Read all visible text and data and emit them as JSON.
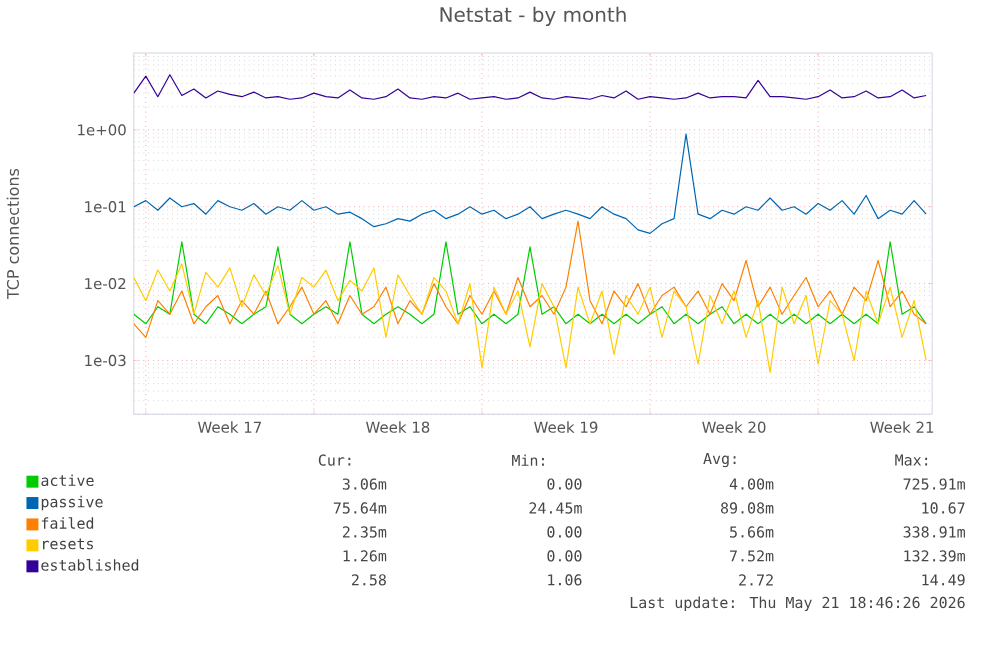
{
  "chart_data": {
    "type": "line",
    "title": "Netstat - by month",
    "ylabel": "TCP connections",
    "x": [
      "2026-04-19T12:00",
      "2026-04-20T00:00",
      "2026-04-20T12:00",
      "2026-04-21T00:00",
      "2026-04-21T12:00",
      "2026-04-22T00:00",
      "2026-04-22T12:00",
      "2026-04-23T00:00",
      "2026-04-23T12:00",
      "2026-04-24T00:00",
      "2026-04-24T12:00",
      "2026-04-25T00:00",
      "2026-04-25T12:00",
      "2026-04-26T00:00",
      "2026-04-26T12:00",
      "2026-04-27T00:00",
      "2026-04-27T12:00",
      "2026-04-28T00:00",
      "2026-04-28T12:00",
      "2026-04-29T00:00",
      "2026-04-29T12:00",
      "2026-04-30T00:00",
      "2026-04-30T12:00",
      "2026-05-01T00:00",
      "2026-05-01T12:00",
      "2026-05-02T00:00",
      "2026-05-02T12:00",
      "2026-05-03T00:00",
      "2026-05-03T12:00",
      "2026-05-04T00:00",
      "2026-05-04T12:00",
      "2026-05-05T00:00",
      "2026-05-05T12:00",
      "2026-05-06T00:00",
      "2026-05-06T12:00",
      "2026-05-07T00:00",
      "2026-05-07T12:00",
      "2026-05-08T00:00",
      "2026-05-08T12:00",
      "2026-05-09T00:00",
      "2026-05-09T12:00",
      "2026-05-10T00:00",
      "2026-05-10T12:00",
      "2026-05-11T00:00",
      "2026-05-11T12:00",
      "2026-05-12T00:00",
      "2026-05-12T12:00",
      "2026-05-13T00:00",
      "2026-05-13T12:00",
      "2026-05-14T00:00",
      "2026-05-14T12:00",
      "2026-05-15T00:00",
      "2026-05-15T12:00",
      "2026-05-16T00:00",
      "2026-05-16T12:00",
      "2026-05-17T00:00",
      "2026-05-17T12:00",
      "2026-05-18T00:00",
      "2026-05-18T12:00",
      "2026-05-19T00:00",
      "2026-05-19T12:00",
      "2026-05-20T00:00",
      "2026-05-20T12:00",
      "2026-05-21T00:00",
      "2026-05-21T12:00",
      "2026-05-22T00:00",
      "2026-05-22T12:00"
    ],
    "series": [
      {
        "name": "active",
        "color": "#00cc00",
        "values": [
          0.004,
          0.003,
          0.005,
          0.004,
          0.035,
          0.004,
          0.003,
          0.005,
          0.004,
          0.003,
          0.004,
          0.005,
          0.03,
          0.004,
          0.003,
          0.004,
          0.005,
          0.004,
          0.035,
          0.004,
          0.003,
          0.004,
          0.005,
          0.004,
          0.003,
          0.004,
          0.035,
          0.004,
          0.005,
          0.003,
          0.004,
          0.003,
          0.004,
          0.03,
          0.004,
          0.005,
          0.003,
          0.004,
          0.003,
          0.004,
          0.003,
          0.004,
          0.003,
          0.004,
          0.005,
          0.003,
          0.004,
          0.003,
          0.004,
          0.005,
          0.003,
          0.004,
          0.003,
          0.004,
          0.003,
          0.004,
          0.003,
          0.004,
          0.003,
          0.004,
          0.003,
          0.004,
          0.003,
          0.035,
          0.004,
          0.005,
          0.003
        ]
      },
      {
        "name": "passive",
        "color": "#0066b3",
        "values": [
          0.1,
          0.12,
          0.09,
          0.13,
          0.1,
          0.11,
          0.08,
          0.12,
          0.1,
          0.09,
          0.11,
          0.08,
          0.1,
          0.09,
          0.12,
          0.09,
          0.1,
          0.08,
          0.085,
          0.07,
          0.055,
          0.06,
          0.07,
          0.065,
          0.08,
          0.09,
          0.07,
          0.08,
          0.1,
          0.08,
          0.09,
          0.07,
          0.08,
          0.1,
          0.07,
          0.08,
          0.09,
          0.08,
          0.07,
          0.1,
          0.08,
          0.07,
          0.05,
          0.045,
          0.06,
          0.07,
          0.88,
          0.08,
          0.07,
          0.09,
          0.08,
          0.1,
          0.09,
          0.13,
          0.09,
          0.1,
          0.08,
          0.11,
          0.09,
          0.12,
          0.08,
          0.14,
          0.07,
          0.09,
          0.08,
          0.12,
          0.08
        ]
      },
      {
        "name": "failed",
        "color": "#ff8000",
        "values": [
          0.003,
          0.002,
          0.006,
          0.004,
          0.008,
          0.003,
          0.005,
          0.007,
          0.003,
          0.006,
          0.004,
          0.008,
          0.003,
          0.005,
          0.009,
          0.004,
          0.006,
          0.003,
          0.007,
          0.004,
          0.005,
          0.009,
          0.003,
          0.006,
          0.004,
          0.01,
          0.005,
          0.003,
          0.007,
          0.004,
          0.008,
          0.004,
          0.012,
          0.005,
          0.007,
          0.004,
          0.009,
          0.065,
          0.006,
          0.003,
          0.008,
          0.005,
          0.01,
          0.004,
          0.007,
          0.009,
          0.005,
          0.008,
          0.004,
          0.01,
          0.006,
          0.02,
          0.005,
          0.009,
          0.004,
          0.007,
          0.012,
          0.005,
          0.008,
          0.004,
          0.009,
          0.006,
          0.02,
          0.005,
          0.008,
          0.004,
          0.003
        ]
      },
      {
        "name": "resets",
        "color": "#ffcc00",
        "values": [
          0.012,
          0.006,
          0.015,
          0.008,
          0.018,
          0.004,
          0.014,
          0.009,
          0.016,
          0.005,
          0.013,
          0.007,
          0.017,
          0.004,
          0.012,
          0.009,
          0.015,
          0.006,
          0.011,
          0.008,
          0.016,
          0.002,
          0.013,
          0.007,
          0.004,
          0.012,
          0.008,
          0.003,
          0.01,
          0.0008,
          0.009,
          0.004,
          0.008,
          0.0015,
          0.01,
          0.005,
          0.0008,
          0.009,
          0.003,
          0.008,
          0.0012,
          0.007,
          0.004,
          0.009,
          0.002,
          0.008,
          0.005,
          0.0009,
          0.007,
          0.003,
          0.008,
          0.002,
          0.006,
          0.0007,
          0.009,
          0.003,
          0.007,
          0.0009,
          0.006,
          0.004,
          0.001,
          0.008,
          0.003,
          0.009,
          0.002,
          0.006,
          0.001
        ]
      },
      {
        "name": "established",
        "color": "#330099",
        "values": [
          3.0,
          5.0,
          2.7,
          5.2,
          2.8,
          3.4,
          2.6,
          3.2,
          2.9,
          2.7,
          3.1,
          2.6,
          2.7,
          2.5,
          2.6,
          3.0,
          2.7,
          2.6,
          3.3,
          2.6,
          2.5,
          2.7,
          3.4,
          2.6,
          2.5,
          2.7,
          2.6,
          3.0,
          2.5,
          2.6,
          2.7,
          2.5,
          2.6,
          3.1,
          2.6,
          2.5,
          2.7,
          2.6,
          2.5,
          2.8,
          2.6,
          3.2,
          2.5,
          2.7,
          2.6,
          2.5,
          2.6,
          3.0,
          2.6,
          2.7,
          2.7,
          2.6,
          4.4,
          2.7,
          2.7,
          2.6,
          2.5,
          2.7,
          3.3,
          2.6,
          2.7,
          3.2,
          2.6,
          2.7,
          3.3,
          2.6,
          2.8
        ]
      }
    ],
    "xlim": [
      "2026-04-19T12:00",
      "2026-05-22T18:00"
    ],
    "xticks": [
      {
        "value": "2026-04-20",
        "label": null
      },
      {
        "value": "2026-04-27",
        "label": null
      },
      {
        "value": "2026-05-04",
        "label": null
      },
      {
        "value": "2026-05-11",
        "label": null
      },
      {
        "value": "2026-05-18",
        "label": null
      },
      {
        "value": "2026-04-23T12:00",
        "label": "Week 17"
      },
      {
        "value": "2026-04-30T12:00",
        "label": "Week 18"
      },
      {
        "value": "2026-05-07T12:00",
        "label": "Week 19"
      },
      {
        "value": "2026-05-14T12:00",
        "label": "Week 20"
      },
      {
        "value": "2026-05-21T12:00",
        "label": "Week 21"
      }
    ],
    "ylim": [
      0.0002,
      10
    ],
    "yticks": [
      {
        "value": 0.001,
        "label": "1e-03"
      },
      {
        "value": 0.01,
        "label": "1e-02"
      },
      {
        "value": 0.1,
        "label": "1e-01"
      },
      {
        "value": 1,
        "label": "1e+00"
      }
    ],
    "log": "y",
    "grid": true,
    "legend": "bottom left",
    "marker": "none",
    "line_style": "solid",
    "annotations": [
      "Cur:",
      "Min:",
      "Avg:",
      "Max:",
      "3.06m",
      "0.00",
      "4.00m",
      "725.91m",
      "75.64m",
      "24.45m",
      "89.08m",
      "10.67",
      "2.35m",
      "0.00",
      "5.66m",
      "338.91m",
      "1.26m",
      "0.00",
      "7.52m",
      "132.39m",
      "2.58",
      "1.06",
      "2.72",
      "14.49",
      "Last update: Thu May 21 18:46:26 2026"
    ]
  }
}
